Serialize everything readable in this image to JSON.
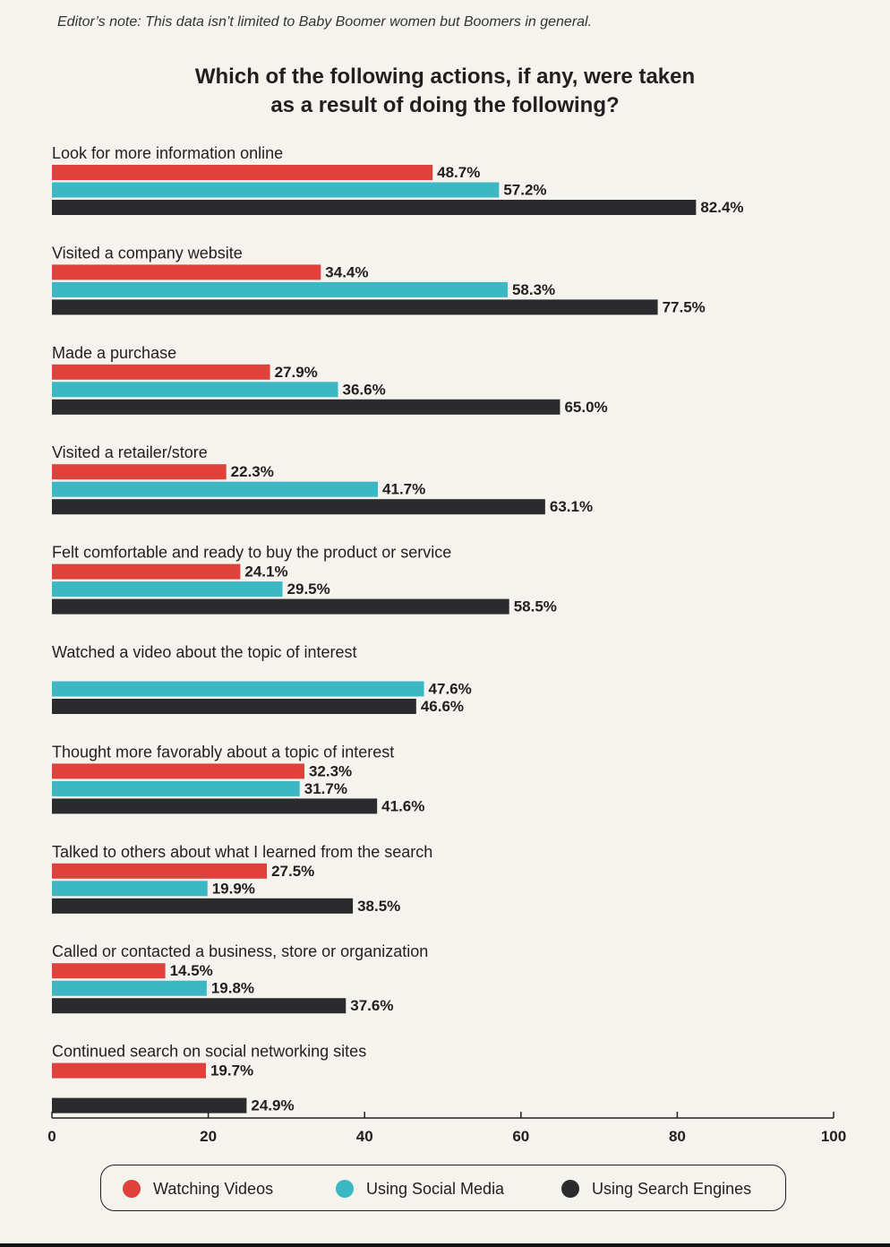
{
  "note": "Editor’s note: This data isn’t limited to Baby Boomer women but Boomers in general.",
  "title_line1": "Which of the following actions, if any, were taken",
  "title_line2": "as a result of doing the following?",
  "colors": {
    "watching_videos": "#e0413a",
    "using_social_media": "#3bb8c4",
    "using_search_engines": "#2b2b2d",
    "background": "#f4f3ee"
  },
  "chart_data": {
    "type": "bar",
    "orientation": "horizontal",
    "title": "Which of the following actions, if any, were taken as a result of doing the following?",
    "categories": [
      "Look for more information online",
      "Visited a company website",
      "Made a purchase",
      "Visited a retailer/store",
      "Felt comfortable and ready to buy the product or service",
      "Watched a video about the topic of interest",
      "Thought more favorably about a topic of interest",
      "Talked to others about what I learned from the search",
      "Called or contacted a business, store or organization",
      "Continued search on social networking sites"
    ],
    "series": [
      {
        "name": "Watching Videos",
        "color": "#e0413a",
        "values": [
          48.7,
          34.4,
          27.9,
          22.3,
          24.1,
          null,
          32.3,
          27.5,
          14.5,
          19.7
        ],
        "labels": [
          "48.7%",
          "34.4%",
          "27.9%",
          "22.3%",
          "24.1%",
          null,
          "32.3%",
          "27.5%",
          "14.5%",
          "19.7%"
        ]
      },
      {
        "name": "Using Social Media",
        "color": "#3bb8c4",
        "values": [
          57.2,
          58.3,
          36.6,
          41.7,
          29.5,
          47.6,
          31.7,
          19.9,
          19.8,
          null
        ],
        "labels": [
          "57.2%",
          "58.3%",
          "36.6%",
          "41.7%",
          "29.5%",
          "47.6%",
          "31.7%",
          "19.9%",
          "19.8%",
          null
        ]
      },
      {
        "name": "Using Search Engines",
        "color": "#2b2b2d",
        "values": [
          82.4,
          77.5,
          65.0,
          63.1,
          58.5,
          46.6,
          41.6,
          38.5,
          37.6,
          24.9
        ],
        "labels": [
          "82.4%",
          "77.5%",
          "65.0%",
          "63.1%",
          "58.5%",
          "46.6%",
          "41.6%",
          "38.5%",
          "37.6%",
          "24.9%"
        ]
      }
    ],
    "xlim": [
      0,
      100
    ],
    "xticks": [
      "0",
      "20",
      "40",
      "60",
      "80",
      "100"
    ],
    "grid": false,
    "legend_position": "bottom"
  },
  "legend": [
    {
      "label": "Watching Videos",
      "color": "#e0413a"
    },
    {
      "label": "Using Social Media",
      "color": "#3bb8c4"
    },
    {
      "label": "Using Search Engines",
      "color": "#2b2b2d"
    }
  ]
}
